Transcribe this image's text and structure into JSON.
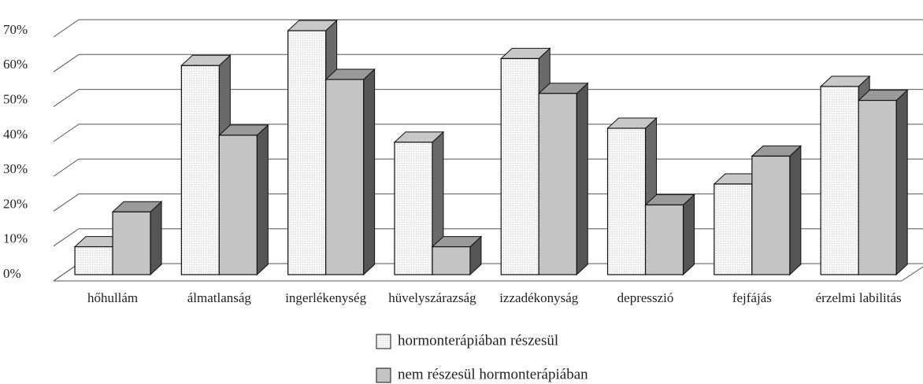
{
  "chart_data": {
    "type": "bar3d",
    "categories": [
      "hőhullám",
      "álmatlanság",
      "ingerlékenység",
      "hüvelyszárazság",
      "izzadékonyság",
      "depresszió",
      "fejfájás",
      "érzelmi labilitás"
    ],
    "series": [
      {
        "name": "hormonterápiában részesül",
        "color": "#f4f4f4",
        "values": [
          8,
          60,
          70,
          38,
          62,
          42,
          26,
          54
        ]
      },
      {
        "name": "nem részesül hormonterápiában",
        "color": "#c4c4c4",
        "values": [
          18,
          40,
          56,
          8,
          52,
          20,
          34,
          50
        ]
      }
    ],
    "ylim": [
      0,
      70
    ],
    "yticks": [
      {
        "value": 0,
        "label": "0%"
      },
      {
        "value": 10,
        "label": "10%"
      },
      {
        "value": 20,
        "label": "20%"
      },
      {
        "value": 30,
        "label": "30%"
      },
      {
        "value": 40,
        "label": "40%"
      },
      {
        "value": 50,
        "label": "50%"
      },
      {
        "value": 60,
        "label": "60%"
      },
      {
        "value": 70,
        "label": "70%"
      }
    ],
    "grid": true
  }
}
